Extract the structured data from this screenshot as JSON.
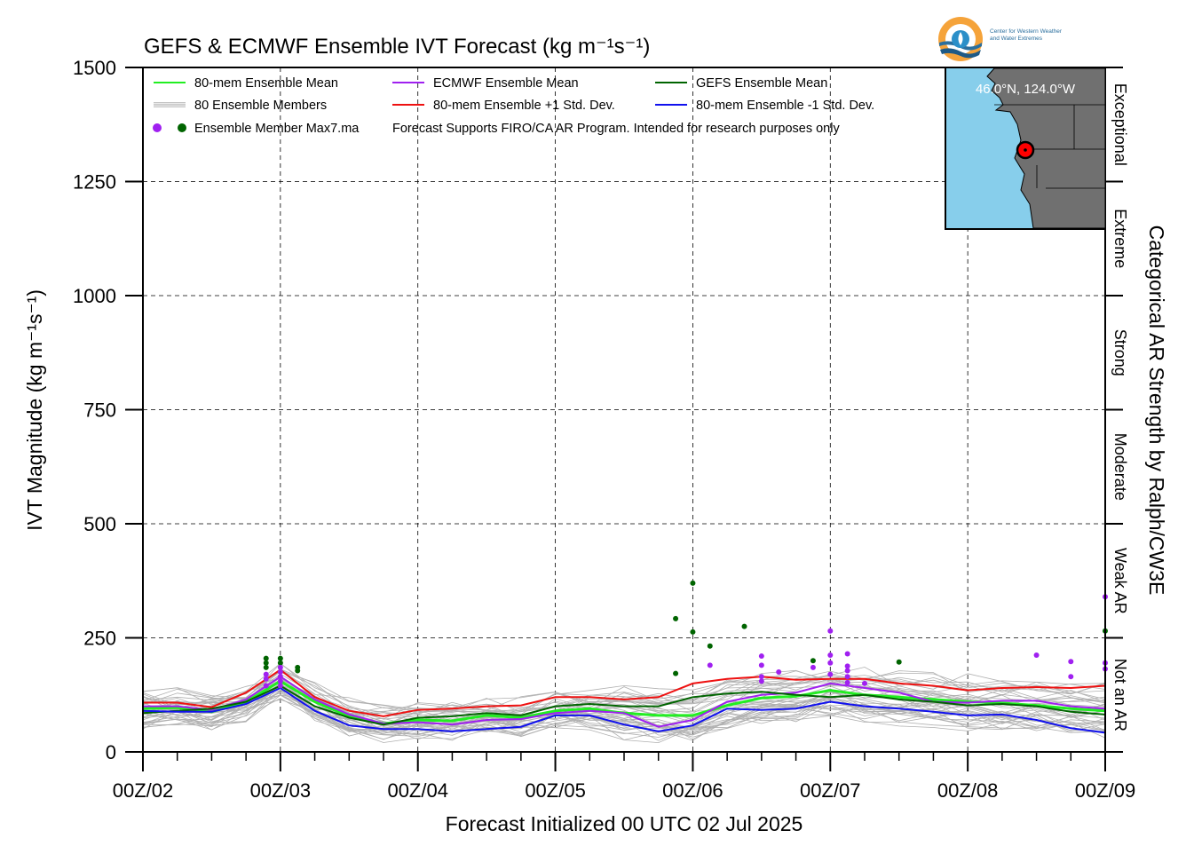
{
  "logo": {
    "line1": "Center for Western Weather",
    "line2": "and Water Extremes"
  },
  "map_inset": {
    "label": "46.0°N, 124.0°W"
  },
  "chart_data": {
    "type": "line",
    "title": "GEFS & ECMWF Ensemble IVT Forecast (kg m⁻¹s⁻¹)",
    "xlabel": "Forecast Initialized 00 UTC 02 Jul 2025",
    "ylabel": "IVT Magnitude (kg m⁻¹s⁻¹)",
    "right_label": "Categorical AR Strength by Ralph/CW3E",
    "x_tick_labels": [
      "00Z/02",
      "00Z/03",
      "00Z/04",
      "00Z/05",
      "00Z/06",
      "00Z/07",
      "00Z/08",
      "00Z/09"
    ],
    "xlim_hours": [
      0,
      168
    ],
    "ylim": [
      0,
      1500
    ],
    "y_ticks": [
      0,
      250,
      500,
      750,
      1000,
      1250,
      1500
    ],
    "grid": true,
    "legend_position": "top-left",
    "categories": [
      {
        "label": "Not an AR",
        "from": 0,
        "to": 250
      },
      {
        "label": "Weak AR",
        "from": 250,
        "to": 500
      },
      {
        "label": "Moderate",
        "from": 500,
        "to": 750
      },
      {
        "label": "Strong",
        "from": 750,
        "to": 1000
      },
      {
        "label": "Extreme",
        "from": 1000,
        "to": 1250
      },
      {
        "label": "Exceptional",
        "from": 1250,
        "to": 1500
      }
    ],
    "legend": [
      {
        "label": "80-mem Ensemble Mean",
        "color": "#22ee22",
        "kind": "line"
      },
      {
        "label": "ECMWF Ensemble Mean",
        "color": "#a020f0",
        "kind": "line"
      },
      {
        "label": "GEFS Ensemble Mean",
        "color": "#006400",
        "kind": "line"
      },
      {
        "label": "80 Ensemble Members",
        "color": "#b0b0b0",
        "kind": "members"
      },
      {
        "label": "80-mem Ensemble +1 Std. Dev.",
        "color": "#ee1111",
        "kind": "line"
      },
      {
        "label": "80-mem Ensemble -1 Std. Dev.",
        "color": "#1111ee",
        "kind": "line"
      }
    ],
    "legend_markers_label": "Ensemble Member Max7.ma",
    "legend_note": "Forecast Supports FIRO/CA AR Program. Intended for research purposes only",
    "series": [
      {
        "name": "80-mem Ensemble Mean",
        "color": "#22ee22",
        "x": [
          0,
          6,
          12,
          18,
          24,
          30,
          36,
          42,
          48,
          54,
          60,
          66,
          72,
          78,
          84,
          90,
          96,
          102,
          108,
          114,
          120,
          126,
          132,
          138,
          144,
          150,
          156,
          162,
          168
        ],
        "values": [
          95,
          97,
          88,
          110,
          155,
          110,
          78,
          62,
          70,
          68,
          80,
          75,
          90,
          95,
          85,
          80,
          80,
          102,
          118,
          122,
          135,
          125,
          120,
          115,
          110,
          107,
          102,
          95,
          90
        ]
      },
      {
        "name": "ECMWF Ensemble Mean",
        "color": "#a020f0",
        "x": [
          0,
          6,
          12,
          18,
          24,
          30,
          36,
          42,
          48,
          54,
          60,
          66,
          72,
          78,
          84,
          90,
          96,
          102,
          108,
          114,
          120,
          126,
          132,
          138,
          144,
          150,
          156,
          162,
          168
        ],
        "values": [
          100,
          100,
          92,
          115,
          165,
          115,
          82,
          62,
          65,
          60,
          70,
          72,
          85,
          90,
          85,
          55,
          70,
          110,
          125,
          130,
          150,
          140,
          130,
          110,
          108,
          112,
          112,
          100,
          95
        ]
      },
      {
        "name": "GEFS Ensemble Mean",
        "color": "#006400",
        "x": [
          0,
          6,
          12,
          18,
          24,
          30,
          36,
          42,
          48,
          54,
          60,
          66,
          72,
          78,
          84,
          90,
          96,
          102,
          108,
          114,
          120,
          126,
          132,
          138,
          144,
          150,
          156,
          162,
          168
        ],
        "values": [
          85,
          90,
          95,
          110,
          145,
          100,
          75,
          60,
          75,
          78,
          85,
          80,
          100,
          105,
          100,
          100,
          120,
          128,
          132,
          125,
          120,
          125,
          115,
          110,
          102,
          105,
          100,
          88,
          82
        ]
      },
      {
        "name": "80-mem Ensemble +1 Std. Dev.",
        "color": "#ee1111",
        "x": [
          0,
          6,
          12,
          18,
          24,
          30,
          36,
          42,
          48,
          54,
          60,
          66,
          72,
          78,
          84,
          90,
          96,
          102,
          108,
          114,
          120,
          126,
          132,
          138,
          144,
          150,
          156,
          162,
          168
        ],
        "values": [
          108,
          108,
          98,
          130,
          180,
          120,
          90,
          78,
          92,
          95,
          100,
          102,
          120,
          120,
          115,
          120,
          150,
          160,
          165,
          158,
          160,
          160,
          150,
          145,
          135,
          140,
          142,
          140,
          145
        ]
      },
      {
        "name": "80-mem Ensemble -1 Std. Dev.",
        "color": "#1111ee",
        "x": [
          0,
          6,
          12,
          18,
          24,
          30,
          36,
          42,
          48,
          54,
          60,
          66,
          72,
          78,
          84,
          90,
          96,
          102,
          108,
          114,
          120,
          126,
          132,
          138,
          144,
          150,
          156,
          162,
          168
        ],
        "values": [
          90,
          88,
          88,
          105,
          140,
          90,
          58,
          50,
          50,
          45,
          50,
          55,
          80,
          80,
          60,
          45,
          58,
          95,
          92,
          95,
          110,
          100,
          95,
          88,
          80,
          82,
          70,
          52,
          42
        ]
      }
    ],
    "max_markers": [
      {
        "x": 21.5,
        "y": 205,
        "color": "#006400"
      },
      {
        "x": 21.5,
        "y": 195,
        "color": "#006400"
      },
      {
        "x": 21.5,
        "y": 185,
        "color": "#006400"
      },
      {
        "x": 21.5,
        "y": 170,
        "color": "#a020f0"
      },
      {
        "x": 21.5,
        "y": 160,
        "color": "#a020f0"
      },
      {
        "x": 21.5,
        "y": 145,
        "color": "#a020f0"
      },
      {
        "x": 24,
        "y": 205,
        "color": "#006400"
      },
      {
        "x": 24,
        "y": 195,
        "color": "#006400"
      },
      {
        "x": 24,
        "y": 185,
        "color": "#a020f0"
      },
      {
        "x": 24,
        "y": 175,
        "color": "#a020f0"
      },
      {
        "x": 24,
        "y": 165,
        "color": "#a020f0"
      },
      {
        "x": 24,
        "y": 155,
        "color": "#a020f0"
      },
      {
        "x": 24,
        "y": 145,
        "color": "#a020f0"
      },
      {
        "x": 27,
        "y": 185,
        "color": "#006400"
      },
      {
        "x": 27,
        "y": 178,
        "color": "#006400"
      },
      {
        "x": 93,
        "y": 292,
        "color": "#006400"
      },
      {
        "x": 93,
        "y": 172,
        "color": "#006400"
      },
      {
        "x": 96,
        "y": 370,
        "color": "#006400"
      },
      {
        "x": 96,
        "y": 263,
        "color": "#006400"
      },
      {
        "x": 99,
        "y": 232,
        "color": "#006400"
      },
      {
        "x": 99,
        "y": 190,
        "color": "#a020f0"
      },
      {
        "x": 105,
        "y": 275,
        "color": "#006400"
      },
      {
        "x": 108,
        "y": 210,
        "color": "#a020f0"
      },
      {
        "x": 108,
        "y": 190,
        "color": "#a020f0"
      },
      {
        "x": 108,
        "y": 165,
        "color": "#a020f0"
      },
      {
        "x": 108,
        "y": 155,
        "color": "#a020f0"
      },
      {
        "x": 111,
        "y": 175,
        "color": "#a020f0"
      },
      {
        "x": 117,
        "y": 200,
        "color": "#006400"
      },
      {
        "x": 117,
        "y": 185,
        "color": "#a020f0"
      },
      {
        "x": 120,
        "y": 265,
        "color": "#a020f0"
      },
      {
        "x": 120,
        "y": 212,
        "color": "#a020f0"
      },
      {
        "x": 120,
        "y": 195,
        "color": "#a020f0"
      },
      {
        "x": 120,
        "y": 170,
        "color": "#a020f0"
      },
      {
        "x": 123,
        "y": 215,
        "color": "#a020f0"
      },
      {
        "x": 123,
        "y": 188,
        "color": "#a020f0"
      },
      {
        "x": 123,
        "y": 178,
        "color": "#a020f0"
      },
      {
        "x": 123,
        "y": 165,
        "color": "#a020f0"
      },
      {
        "x": 123,
        "y": 152,
        "color": "#a020f0"
      },
      {
        "x": 126,
        "y": 150,
        "color": "#a020f0"
      },
      {
        "x": 132,
        "y": 197,
        "color": "#006400"
      },
      {
        "x": 156,
        "y": 212,
        "color": "#a020f0"
      },
      {
        "x": 162,
        "y": 198,
        "color": "#a020f0"
      },
      {
        "x": 162,
        "y": 165,
        "color": "#a020f0"
      },
      {
        "x": 168,
        "y": 340,
        "color": "#a020f0"
      },
      {
        "x": 168,
        "y": 265,
        "color": "#006400"
      },
      {
        "x": 168,
        "y": 195,
        "color": "#a020f0"
      },
      {
        "x": 168,
        "y": 182,
        "color": "#a020f0"
      }
    ]
  }
}
